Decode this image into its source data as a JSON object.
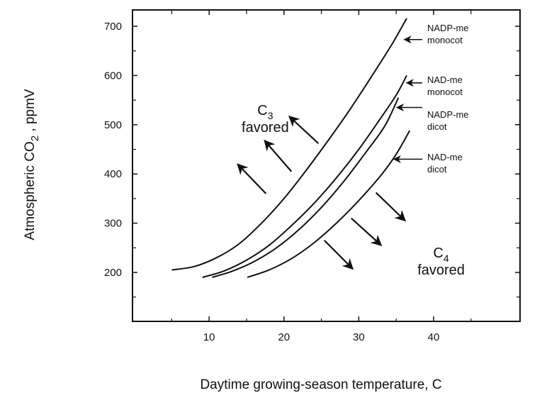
{
  "chart_data": {
    "type": "line",
    "title": "",
    "xlabel": "Daytime growing-season temperature, C",
    "ylabel_parts": {
      "main": "Atmospheric CO",
      "sub": "2",
      "tail": " , ppmV"
    },
    "xlim": [
      0,
      52
    ],
    "ylim": [
      100,
      733
    ],
    "x_ticks": [
      10,
      20,
      30,
      40
    ],
    "x_tick_labels": [
      "10",
      "20",
      "30",
      "40"
    ],
    "x_minor_ticks": [
      5,
      15,
      25,
      35,
      45
    ],
    "y_ticks": [
      200,
      300,
      400,
      500,
      600,
      700
    ],
    "y_tick_labels": [
      "200",
      "300",
      "400",
      "500",
      "600",
      "700"
    ],
    "y_minor_ticks": [
      150,
      250,
      350,
      450,
      550,
      650
    ],
    "grid": false,
    "series": [
      {
        "name": "NADP-me monocot",
        "label_lines": [
          "NADP-me",
          "monocot"
        ],
        "points": [
          [
            5,
            205
          ],
          [
            8,
            212
          ],
          [
            11,
            230
          ],
          [
            14,
            258
          ],
          [
            17,
            300
          ],
          [
            20,
            350
          ],
          [
            23,
            408
          ],
          [
            26,
            470
          ],
          [
            29,
            535
          ],
          [
            32,
            605
          ],
          [
            34.5,
            665
          ],
          [
            36.4,
            716
          ]
        ]
      },
      {
        "name": "NAD-me monocot",
        "label_lines": [
          "NAD-me",
          "monocot"
        ],
        "points": [
          [
            9.1,
            190
          ],
          [
            12,
            203
          ],
          [
            15,
            225
          ],
          [
            18,
            255
          ],
          [
            21,
            295
          ],
          [
            24,
            340
          ],
          [
            27,
            392
          ],
          [
            30,
            450
          ],
          [
            33,
            515
          ],
          [
            35,
            560
          ],
          [
            36.4,
            600
          ]
        ]
      },
      {
        "name": "NADP-me dicot",
        "label_lines": [
          "NADP-me",
          "dicot"
        ],
        "points": [
          [
            10.4,
            190
          ],
          [
            13,
            202
          ],
          [
            16,
            222
          ],
          [
            19,
            250
          ],
          [
            22,
            287
          ],
          [
            25,
            332
          ],
          [
            28,
            385
          ],
          [
            31,
            445
          ],
          [
            33.5,
            498
          ],
          [
            35.3,
            555
          ]
        ]
      },
      {
        "name": "NAD-me dicot",
        "label_lines": [
          "NAD-me",
          "dicot"
        ],
        "points": [
          [
            15.1,
            190
          ],
          [
            18,
            205
          ],
          [
            21,
            228
          ],
          [
            24,
            260
          ],
          [
            27,
            300
          ],
          [
            30,
            346
          ],
          [
            33,
            398
          ],
          [
            35,
            440
          ],
          [
            36.8,
            488
          ]
        ]
      }
    ],
    "series_label_arrows_target": [
      {
        "series": "NADP-me monocot",
        "at": [
          35.8,
          673
        ]
      },
      {
        "series": "NAD-me monocot",
        "at": [
          36.1,
          585
        ]
      },
      {
        "series": "NADP-me dicot",
        "at": [
          34.8,
          535
        ]
      },
      {
        "series": "NAD-me dicot",
        "at": [
          34.4,
          430
        ]
      }
    ],
    "annotations": [
      {
        "name": "c3-favored",
        "main": "C",
        "sub": "3",
        "line2": "favored",
        "at": [
          17.5,
          520
        ]
      },
      {
        "name": "c4-favored",
        "main": "C",
        "sub": "4",
        "line2": "favored",
        "at": [
          41,
          230
        ]
      }
    ],
    "direction_arrows": [
      {
        "region": "C3",
        "from": [
          17.6,
          360
        ],
        "to": [
          13.8,
          420
        ]
      },
      {
        "region": "C3",
        "from": [
          21,
          405
        ],
        "to": [
          17.4,
          468
        ]
      },
      {
        "region": "C3",
        "from": [
          24.6,
          462
        ],
        "to": [
          20.7,
          517
        ]
      },
      {
        "region": "C4",
        "from": [
          25.4,
          265
        ],
        "to": [
          29.2,
          207
        ]
      },
      {
        "region": "C4",
        "from": [
          29,
          310
        ],
        "to": [
          33,
          255
        ]
      },
      {
        "region": "C4",
        "from": [
          32.3,
          362
        ],
        "to": [
          36.2,
          305
        ]
      }
    ]
  }
}
